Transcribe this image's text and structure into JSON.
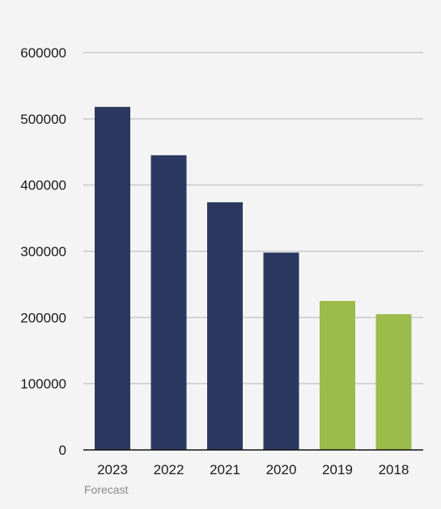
{
  "chart_data": {
    "type": "bar",
    "categories": [
      "2023",
      "2022",
      "2021",
      "2020",
      "2019",
      "2018"
    ],
    "values": [
      518000,
      445000,
      374000,
      298000,
      225000,
      205000
    ],
    "ylim": [
      0,
      600000
    ],
    "yticks": [
      0,
      100000,
      200000,
      300000,
      400000,
      500000,
      600000
    ],
    "grid": true,
    "colors": [
      "#2b3960",
      "#2b3960",
      "#2b3960",
      "#2b3960",
      "#9bbb4a",
      "#9bbb4a"
    ],
    "annotation": "Forecast"
  }
}
